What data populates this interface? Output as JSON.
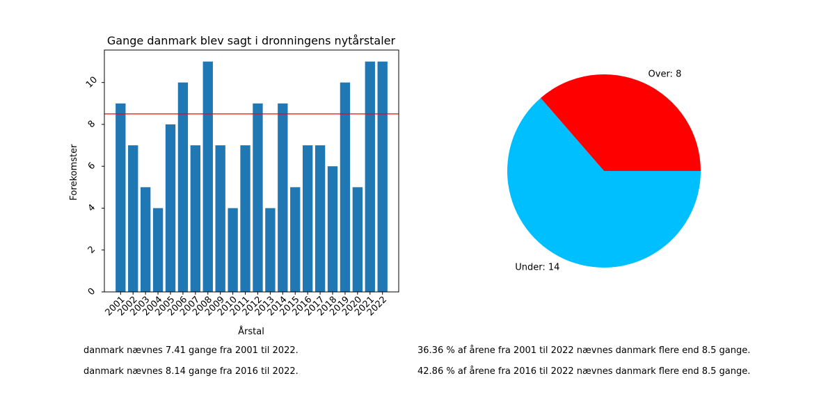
{
  "chart_data": [
    {
      "type": "bar",
      "title": "Gange danmark blev sagt i dronningens nytårstaler",
      "xlabel": "Årstal",
      "ylabel": "Forekomster",
      "categories": [
        "2001",
        "2002",
        "2003",
        "2004",
        "2005",
        "2006",
        "2007",
        "2008",
        "2009",
        "2010",
        "2011",
        "2012",
        "2013",
        "2014",
        "2015",
        "2016",
        "2017",
        "2018",
        "2019",
        "2020",
        "2021",
        "2022"
      ],
      "values": [
        9,
        7,
        5,
        4,
        8,
        10,
        7,
        11,
        7,
        4,
        7,
        9,
        4,
        9,
        5,
        7,
        7,
        6,
        10,
        5,
        11,
        11
      ],
      "yticks": [
        0,
        2,
        4,
        6,
        8,
        10
      ],
      "ylim": [
        0,
        11.55
      ],
      "reference_line": 8.5,
      "bar_color": "#1f77b4",
      "line_color": "#ff0000",
      "grid": false
    },
    {
      "type": "pie",
      "slices": [
        {
          "label": "Over: 8",
          "value": 8,
          "color": "#ff0000"
        },
        {
          "label": "Under: 14",
          "value": 14,
          "color": "#00bfff"
        }
      ]
    }
  ],
  "notes": {
    "left1": "danmark nævnes 7.41 gange fra 2001 til 2022.",
    "left2": "danmark nævnes 8.14 gange fra 2016 til 2022.",
    "right1": "36.36 % af årene fra 2001 til 2022 nævnes danmark flere end 8.5 gange.",
    "right2": "42.86 % af årene fra 2016 til 2022 nævnes danmark flere end 8.5 gange."
  }
}
